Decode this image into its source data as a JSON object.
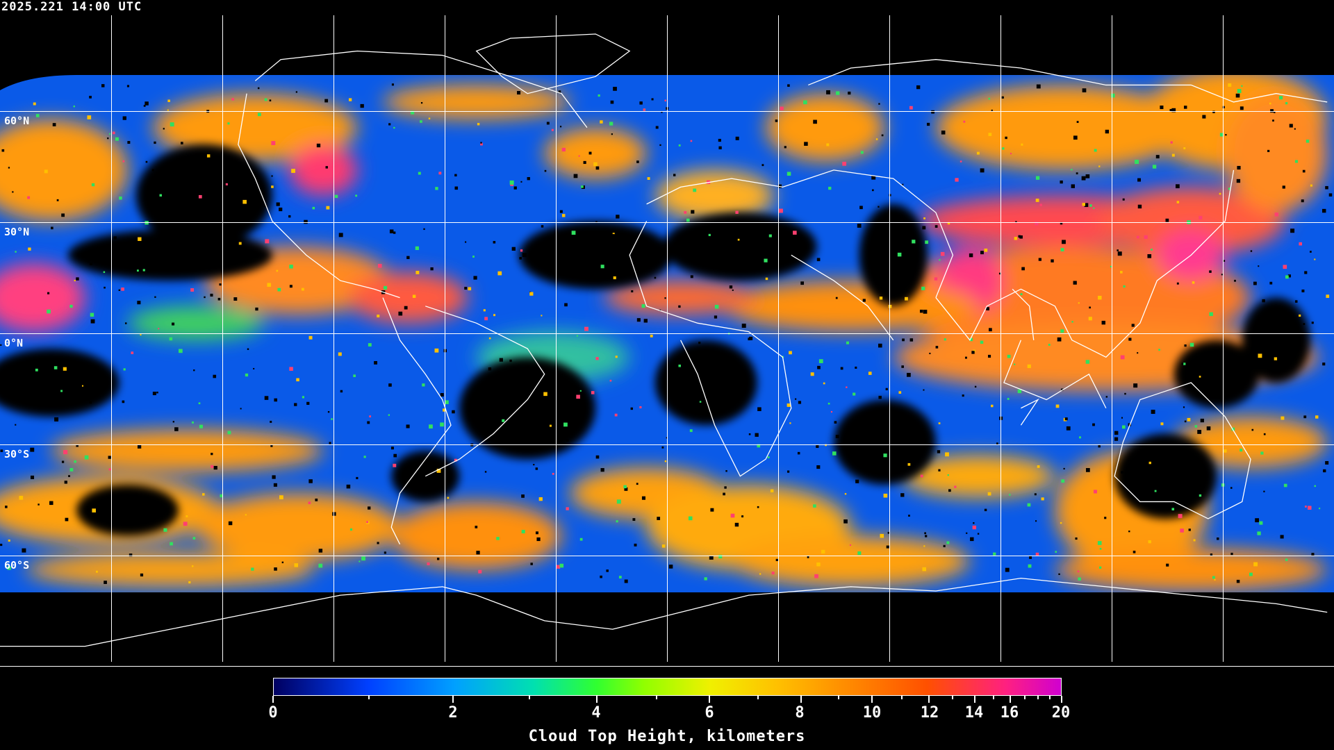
{
  "timestamp": "2025.221 14:00 UTC",
  "map": {
    "projection": "equirectangular",
    "lon_range": [
      -180,
      180
    ],
    "lat_range": [
      -90,
      90
    ],
    "grid_spacing_deg": 30,
    "lat_labels": [
      "60°N",
      "30°N",
      "0°N",
      "30°S",
      "60°S"
    ],
    "coastline_color": "#ffffff",
    "gridline_color": "#ffffff",
    "background_color": "#000000"
  },
  "colorbar": {
    "title": "Cloud Top Height, kilometers",
    "min": 0,
    "max": 20,
    "tick_labels": [
      "0",
      "2",
      "4",
      "6",
      "8",
      "10",
      "12",
      "14",
      "16",
      "20"
    ],
    "colors": [
      "#000060",
      "#0040ff",
      "#00a0ff",
      "#00e0b0",
      "#30ff30",
      "#90ff00",
      "#f0f000",
      "#ffc000",
      "#ff9000",
      "#ff5000",
      "#ff2080",
      "#d000d0"
    ]
  }
}
